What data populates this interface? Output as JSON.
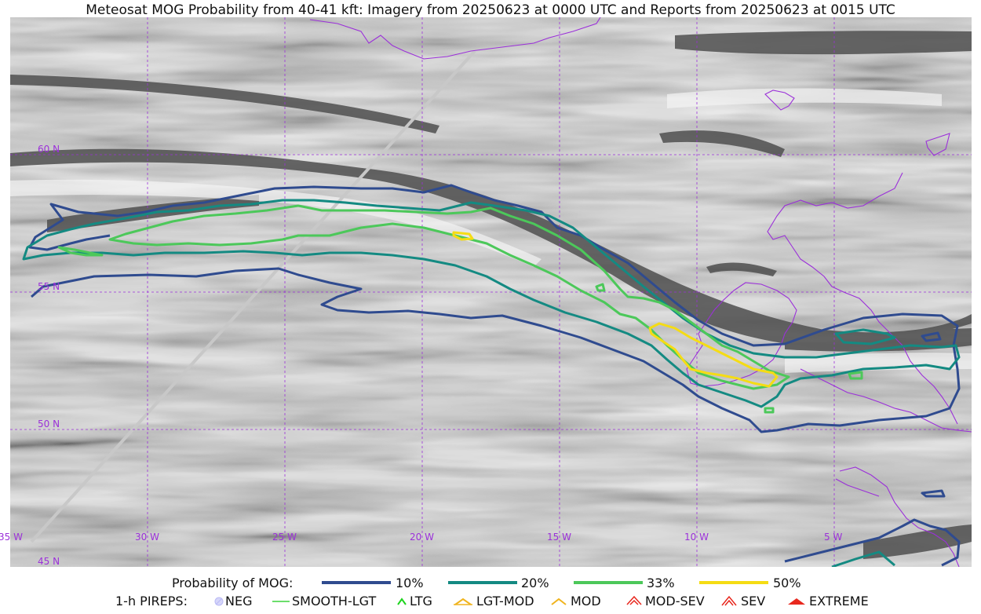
{
  "title": "Meteosat MOG Probability from 40-41 kft: Imagery from 20250623 at 0000 UTC and Reports from 20250623 at 0015 UTC",
  "map": {
    "lat_labels": [
      "60 N",
      "55 N",
      "50 N",
      "45 N"
    ],
    "lon_labels": [
      "35 W",
      "30 W",
      "25 W",
      "20 W",
      "15 W",
      "10 W",
      "5 W"
    ],
    "coastline_color": "#9b30d9",
    "grid_color": "#9b30d9"
  },
  "legend": {
    "probability_label": "Probability of MOG:",
    "levels": [
      {
        "label": "10%",
        "color": "#2f4b8f"
      },
      {
        "label": "20%",
        "color": "#148a82"
      },
      {
        "label": "33%",
        "color": "#4cc85a"
      },
      {
        "label": "50%",
        "color": "#f5dc14"
      }
    ],
    "pireps_label": "1-h PIREPS:",
    "pireps": [
      {
        "label": "NEG",
        "color": "#b9b9f5",
        "icon": "neg-circle-icon"
      },
      {
        "label": "SMOOTH-LGT",
        "color": "#3bd43b",
        "icon": "smooth-line-icon"
      },
      {
        "label": "LTG",
        "color": "#1ed41e",
        "icon": "caret-icon"
      },
      {
        "label": "LGT-MOD",
        "color": "#f0b41e",
        "icon": "lgt-mod-icon"
      },
      {
        "label": "MOD",
        "color": "#f0b41e",
        "icon": "caret-icon"
      },
      {
        "label": "MOD-SEV",
        "color": "#e8281e",
        "icon": "mod-sev-icon"
      },
      {
        "label": "SEV",
        "color": "#e8281e",
        "icon": "sev-icon"
      },
      {
        "label": "EXTREME",
        "color": "#e8281e",
        "icon": "extreme-icon"
      }
    ]
  }
}
